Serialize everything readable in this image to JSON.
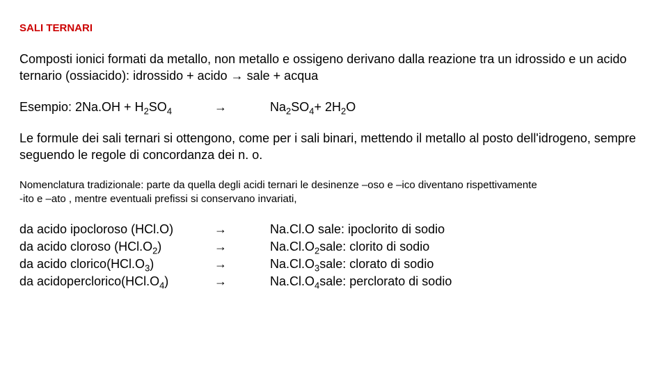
{
  "colors": {
    "title": "#cc0000",
    "text": "#000000",
    "background": "#ffffff"
  },
  "typography": {
    "title_fontsize": 15,
    "body_fontsize": 18,
    "small_fontsize": 15,
    "font_family": "Arial"
  },
  "title": "SALI TERNARI",
  "intro": "Composti ionici formati da metallo, non metallo e ossigeno derivano dalla reazione tra un idrossido e un acido ternario (ossiacido): idrossido + acido → sale + acqua",
  "example": {
    "label": "Esempio: 2Na.OH + H₂SO₄",
    "arrow": "→",
    "result": "Na₂SO₄+ 2H₂O"
  },
  "formule_text": "Le formule dei sali ternari si ottengono, come per i sali binari, mettendo il metallo al posto dell'idrogeno, sempre seguendo le regole di concordanza dei n. o.",
  "nomenclatura": {
    "line1": "Nomenclatura tradizionale: parte da quella degli acidi ternari le desinenze –oso e –ico diventano rispettivamente",
    "line2": "-ito e –ato , mentre eventuali prefissi si conservano invariati,"
  },
  "acids": [
    {
      "left": "da acido ipocloroso (HCl.O)",
      "arrow": "→",
      "right": "Na.Cl.O sale: ipoclorito di sodio"
    },
    {
      "left": "da acido cloroso (HCl.O₂)",
      "arrow": "→",
      "right": "Na.Cl.O₂sale: clorito di sodio"
    },
    {
      "left": "da acido clorico(HCl.O₃)",
      "arrow": "→",
      "right": "Na.Cl.O₃sale: clorato di sodio"
    },
    {
      "left": "da acidoperclorico(HCl.O₄)",
      "arrow": "→",
      "right": "Na.Cl.O₄sale: perclorato di sodio"
    }
  ]
}
